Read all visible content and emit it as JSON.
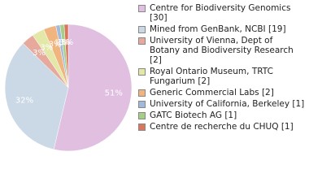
{
  "chart_data": {
    "type": "pie",
    "categories": [
      "Centre for Biodiversity Genomics [30]",
      "Mined from GenBank, NCBI [19]",
      "University of Vienna, Dept of Botany and Biodiversity Research [2]",
      "Royal Ontario Museum, TRTC Fungarium [2]",
      "Generic Commercial Labs [2]",
      "University of California, Berkeley [1]",
      "GATC Biotech AG [1]",
      "Centre de recherche du CHUQ [1]"
    ],
    "values": [
      51,
      32,
      3,
      3,
      3,
      1,
      1,
      1
    ],
    "value_labels": [
      "51%",
      "32%",
      "3%",
      "3%",
      "3%",
      "1%",
      "1%",
      "1%"
    ],
    "colors": [
      "#e0bfe0",
      "#cbd8e6",
      "#e6a99c",
      "#e3e8a8",
      "#f0b47e",
      "#a3b9dc",
      "#a6cf86",
      "#d9765e"
    ]
  }
}
